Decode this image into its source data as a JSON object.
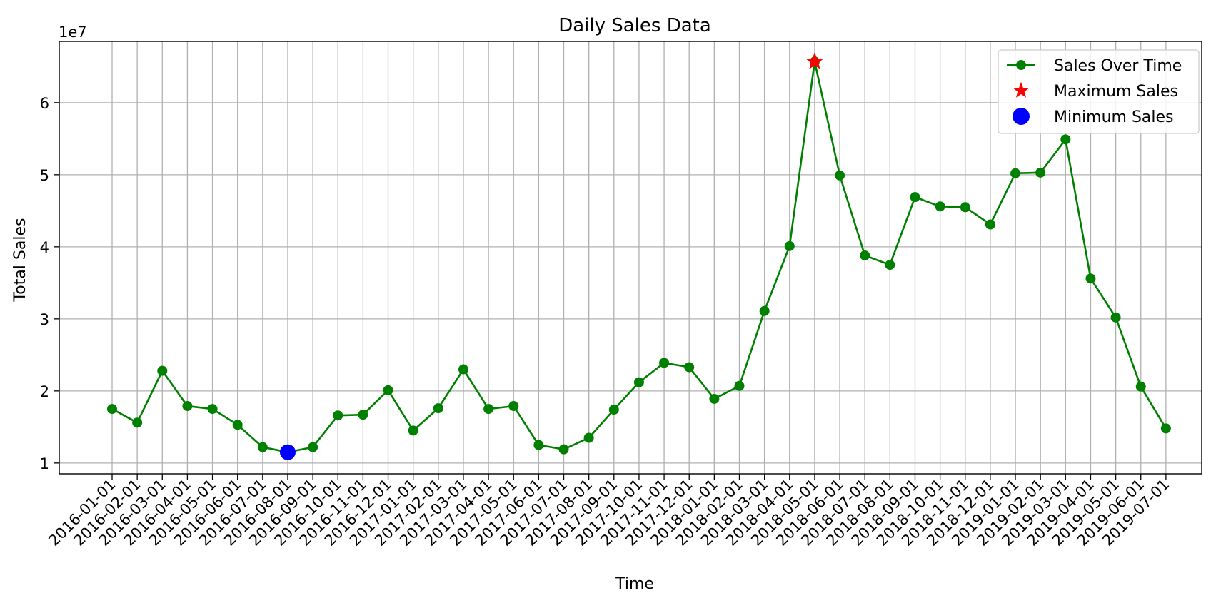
{
  "chart_data": {
    "type": "line",
    "title": "Daily Sales Data",
    "xlabel": "Time",
    "ylabel": "Total Sales",
    "y_offset_label": "1e7",
    "ylim": [
      0.85,
      6.85
    ],
    "yticks": [
      1,
      2,
      3,
      4,
      5,
      6
    ],
    "grid": true,
    "legend_placement": "top-right",
    "x": [
      "2016-01-01",
      "2016-02-01",
      "2016-03-01",
      "2016-04-01",
      "2016-05-01",
      "2016-06-01",
      "2016-07-01",
      "2016-08-01",
      "2016-09-01",
      "2016-10-01",
      "2016-11-01",
      "2016-12-01",
      "2017-01-01",
      "2017-02-01",
      "2017-03-01",
      "2017-04-01",
      "2017-05-01",
      "2017-06-01",
      "2017-07-01",
      "2017-08-01",
      "2017-09-01",
      "2017-10-01",
      "2017-11-01",
      "2017-12-01",
      "2018-01-01",
      "2018-02-01",
      "2018-03-01",
      "2018-04-01",
      "2018-05-01",
      "2018-06-01",
      "2018-07-01",
      "2018-08-01",
      "2018-09-01",
      "2018-10-01",
      "2018-11-01",
      "2018-12-01",
      "2019-01-01",
      "2019-02-01",
      "2019-03-01",
      "2019-04-01",
      "2019-05-01",
      "2019-06-01",
      "2019-07-01"
    ],
    "series": [
      {
        "name": "Sales Over Time",
        "color": "#008000",
        "marker": "circle",
        "x_start_index": 0,
        "values": [
          1.75,
          1.56,
          2.28,
          1.79,
          1.75,
          1.53,
          1.22,
          1.15,
          1.22,
          1.66,
          1.67,
          2.01,
          1.45,
          1.76,
          2.3,
          1.75,
          1.79,
          1.25,
          1.19,
          1.35,
          1.74,
          2.12,
          2.39,
          2.33,
          1.89,
          2.07,
          3.11,
          4.01,
          6.57,
          4.99,
          3.88,
          3.75,
          4.69,
          4.56,
          4.55,
          4.31,
          5.02,
          5.03,
          5.49,
          3.56,
          3.02,
          2.06,
          1.48
        ]
      }
    ],
    "highlights": [
      {
        "name": "Maximum Sales",
        "marker": "star",
        "color": "#ff0000",
        "x": "2018-05-01",
        "y": 6.57
      },
      {
        "name": "Minimum Sales",
        "marker": "circle",
        "color": "#0000ff",
        "x": "2016-08-01",
        "y": 1.15
      }
    ]
  }
}
